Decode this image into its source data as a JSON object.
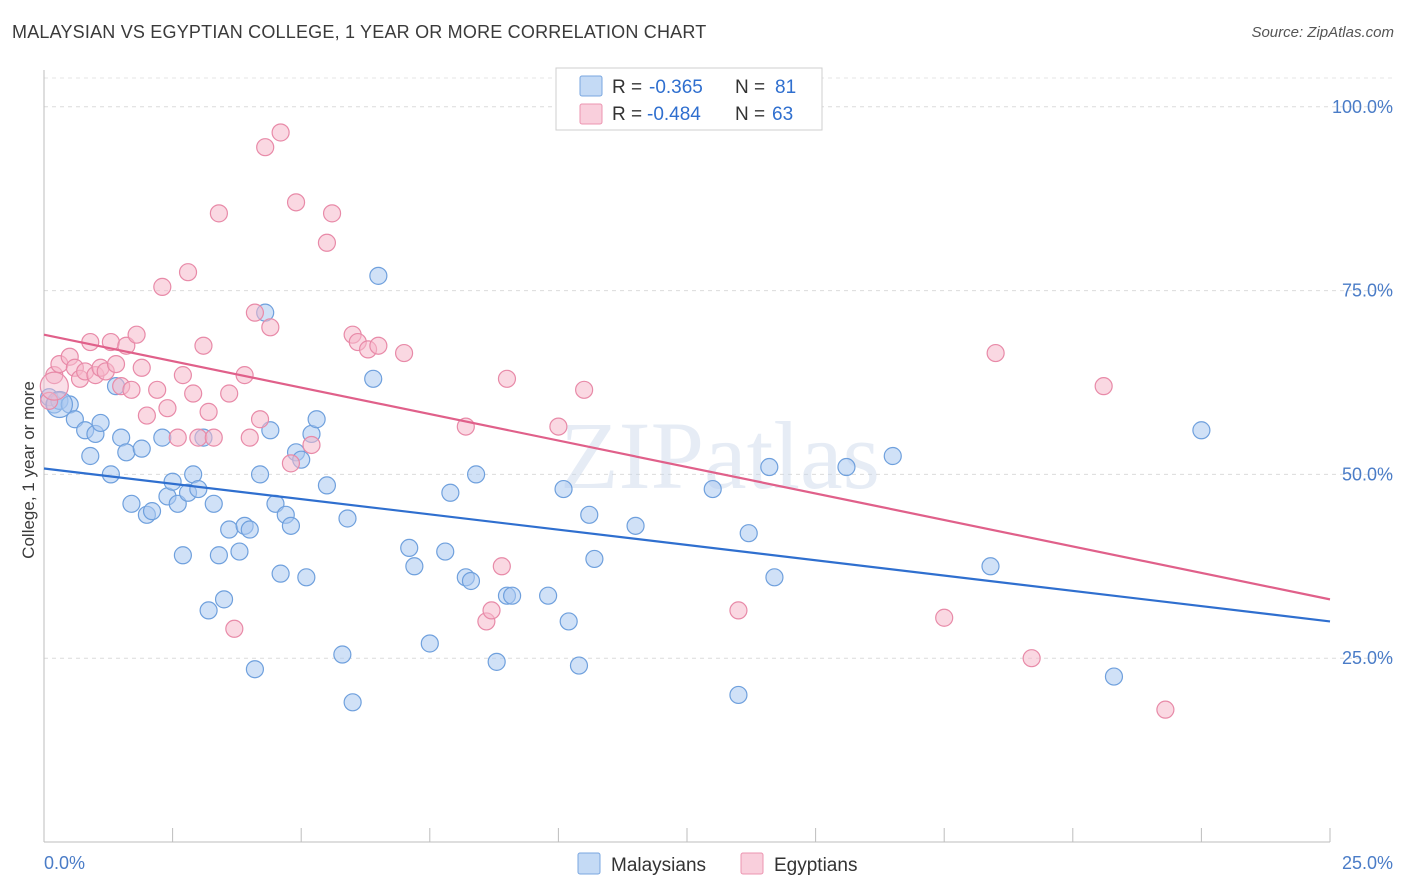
{
  "title": "MALAYSIAN VS EGYPTIAN COLLEGE, 1 YEAR OR MORE CORRELATION CHART",
  "source": "Source: ZipAtlas.com",
  "watermark": "ZIPatlas",
  "legend": {
    "r_label": "R =",
    "n_label": "N =",
    "rows": [
      {
        "r": "-0.365",
        "n": "81",
        "color": "#a9c8f0"
      },
      {
        "r": "-0.484",
        "n": "63",
        "color": "#f5b8cb"
      }
    ]
  },
  "chart_data": {
    "type": "scatter",
    "title": "MALAYSIAN VS EGYPTIAN COLLEGE, 1 YEAR OR MORE CORRELATION CHART",
    "ylabel": "College, 1 year or more",
    "xlabel": "",
    "xlim": [
      0,
      25
    ],
    "ylim": [
      0,
      105
    ],
    "x_tick_labels": [
      "0.0%",
      "25.0%"
    ],
    "y_tick_labels": [
      "100.0%",
      "75.0%",
      "50.0%",
      "25.0%"
    ],
    "y_ticks": [
      100,
      75,
      50,
      25
    ],
    "grid": true,
    "legend_position": "bottom",
    "series": [
      {
        "name": "Malaysians",
        "color": "#a9c8f0",
        "stroke": "#6fa0dd",
        "line_color": "#2f6fcf",
        "trend": {
          "x0": 0.0,
          "y0": 50.8,
          "x1": 25.0,
          "y1": 30.0
        },
        "points": [
          [
            0.1,
            60.5
          ],
          [
            0.2,
            59.5
          ],
          [
            0.3,
            60.0
          ],
          [
            0.5,
            59.5
          ],
          [
            0.6,
            57.5
          ],
          [
            0.8,
            56.0
          ],
          [
            1.0,
            55.5
          ],
          [
            0.9,
            52.5
          ],
          [
            1.1,
            57.0
          ],
          [
            1.3,
            50.0
          ],
          [
            1.4,
            62.0
          ],
          [
            1.5,
            55.0
          ],
          [
            1.6,
            53.0
          ],
          [
            1.7,
            46.0
          ],
          [
            1.9,
            53.5
          ],
          [
            2.0,
            44.5
          ],
          [
            2.1,
            45.0
          ],
          [
            2.3,
            55.0
          ],
          [
            2.4,
            47.0
          ],
          [
            2.5,
            49.0
          ],
          [
            2.6,
            46.0
          ],
          [
            2.7,
            39.0
          ],
          [
            2.8,
            47.5
          ],
          [
            2.9,
            50.0
          ],
          [
            3.0,
            48.0
          ],
          [
            3.1,
            55.0
          ],
          [
            3.3,
            46.0
          ],
          [
            3.2,
            31.5
          ],
          [
            3.4,
            39.0
          ],
          [
            3.5,
            33.0
          ],
          [
            3.6,
            42.5
          ],
          [
            3.8,
            39.5
          ],
          [
            3.9,
            43.0
          ],
          [
            4.0,
            42.5
          ],
          [
            4.1,
            23.5
          ],
          [
            4.2,
            50.0
          ],
          [
            4.3,
            72.0
          ],
          [
            4.4,
            56.0
          ],
          [
            4.5,
            46.0
          ],
          [
            4.6,
            36.5
          ],
          [
            4.7,
            44.5
          ],
          [
            4.8,
            43.0
          ],
          [
            4.9,
            53.0
          ],
          [
            5.0,
            52.0
          ],
          [
            5.1,
            36.0
          ],
          [
            5.2,
            55.5
          ],
          [
            5.3,
            57.5
          ],
          [
            5.5,
            48.5
          ],
          [
            5.8,
            25.5
          ],
          [
            5.9,
            44.0
          ],
          [
            6.0,
            19.0
          ],
          [
            6.4,
            63.0
          ],
          [
            6.5,
            77.0
          ],
          [
            7.1,
            40.0
          ],
          [
            7.2,
            37.5
          ],
          [
            7.5,
            27.0
          ],
          [
            7.8,
            39.5
          ],
          [
            7.9,
            47.5
          ],
          [
            8.2,
            36.0
          ],
          [
            8.3,
            35.5
          ],
          [
            8.4,
            50.0
          ],
          [
            8.8,
            24.5
          ],
          [
            9.0,
            33.5
          ],
          [
            9.1,
            33.5
          ],
          [
            9.8,
            33.5
          ],
          [
            10.1,
            48.0
          ],
          [
            10.2,
            30.0
          ],
          [
            10.4,
            24.0
          ],
          [
            10.6,
            44.5
          ],
          [
            10.7,
            38.5
          ],
          [
            11.5,
            43.0
          ],
          [
            13.0,
            48.0
          ],
          [
            13.5,
            20.0
          ],
          [
            13.7,
            42.0
          ],
          [
            14.1,
            51.0
          ],
          [
            14.2,
            36.0
          ],
          [
            15.6,
            51.0
          ],
          [
            16.5,
            52.5
          ],
          [
            18.4,
            37.5
          ],
          [
            20.8,
            22.5
          ],
          [
            22.5,
            56.0
          ]
        ]
      },
      {
        "name": "Egyptians",
        "color": "#f5b8cb",
        "stroke": "#e88aa8",
        "line_color": "#e0608a",
        "trend": {
          "x0": 0.0,
          "y0": 69.0,
          "x1": 25.0,
          "y1": 33.0
        },
        "points": [
          [
            0.1,
            60.0
          ],
          [
            0.2,
            63.5
          ],
          [
            0.3,
            65.0
          ],
          [
            0.5,
            66.0
          ],
          [
            0.6,
            64.5
          ],
          [
            0.7,
            63.0
          ],
          [
            0.8,
            64.0
          ],
          [
            0.9,
            68.0
          ],
          [
            1.0,
            63.5
          ],
          [
            1.1,
            64.5
          ],
          [
            1.2,
            64.0
          ],
          [
            1.3,
            68.0
          ],
          [
            1.4,
            65.0
          ],
          [
            1.5,
            62.0
          ],
          [
            1.6,
            67.5
          ],
          [
            1.7,
            61.5
          ],
          [
            1.8,
            69.0
          ],
          [
            1.9,
            64.5
          ],
          [
            2.0,
            58.0
          ],
          [
            2.2,
            61.5
          ],
          [
            2.3,
            75.5
          ],
          [
            2.4,
            59.0
          ],
          [
            2.6,
            55.0
          ],
          [
            2.7,
            63.5
          ],
          [
            2.8,
            77.5
          ],
          [
            2.9,
            61.0
          ],
          [
            3.0,
            55.0
          ],
          [
            3.1,
            67.5
          ],
          [
            3.2,
            58.5
          ],
          [
            3.3,
            55.0
          ],
          [
            3.4,
            85.5
          ],
          [
            3.6,
            61.0
          ],
          [
            3.7,
            29.0
          ],
          [
            3.9,
            63.5
          ],
          [
            4.0,
            55.0
          ],
          [
            4.1,
            72.0
          ],
          [
            4.2,
            57.5
          ],
          [
            4.3,
            94.5
          ],
          [
            4.4,
            70.0
          ],
          [
            4.6,
            96.5
          ],
          [
            4.8,
            51.5
          ],
          [
            4.9,
            87.0
          ],
          [
            5.2,
            54.0
          ],
          [
            5.5,
            81.5
          ],
          [
            5.6,
            85.5
          ],
          [
            6.0,
            69.0
          ],
          [
            6.1,
            68.0
          ],
          [
            6.3,
            67.0
          ],
          [
            6.5,
            67.5
          ],
          [
            7.0,
            66.5
          ],
          [
            8.2,
            56.5
          ],
          [
            8.6,
            30.0
          ],
          [
            8.7,
            31.5
          ],
          [
            8.9,
            37.5
          ],
          [
            9.0,
            63.0
          ],
          [
            10.0,
            56.5
          ],
          [
            10.5,
            61.5
          ],
          [
            13.5,
            31.5
          ],
          [
            17.5,
            30.5
          ],
          [
            18.5,
            66.5
          ],
          [
            19.2,
            25.0
          ],
          [
            20.6,
            62.0
          ],
          [
            21.8,
            18.0
          ]
        ]
      }
    ]
  },
  "bottom_legend": [
    "Malaysians",
    "Egyptians"
  ]
}
